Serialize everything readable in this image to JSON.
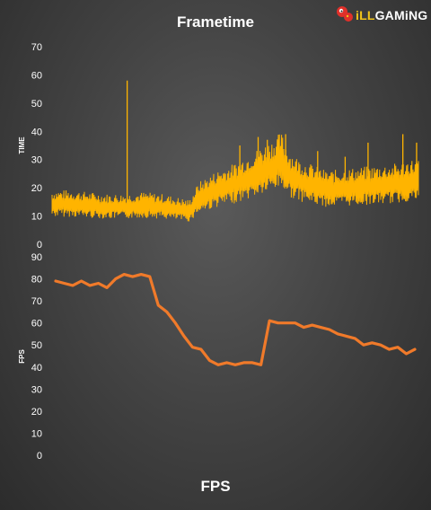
{
  "logo": {
    "brand": "iLLGAMiNG",
    "prefix": "iLL",
    "suffix": "GAMiNG",
    "accent": "#f0c419",
    "mascot_icon": "red-mascot-icon"
  },
  "chart_data": [
    {
      "type": "line",
      "title": "Frametime",
      "ylabel": "TIME",
      "xlabel": "",
      "ylim": [
        0,
        70
      ],
      "yticks": [
        0,
        10,
        20,
        30,
        40,
        50,
        60,
        70
      ],
      "grid": false,
      "color": "#ffb400",
      "x_range": [
        0,
        400
      ],
      "series": [
        {
          "values": [
            [
              0,
              14
            ],
            [
              20,
              14
            ],
            [
              40,
              13.5
            ],
            [
              60,
              13
            ],
            [
              80,
              13
            ],
            [
              100,
              13.5
            ],
            [
              120,
              13
            ],
            [
              140,
              12
            ],
            [
              150,
              11.5
            ],
            [
              160,
              16
            ],
            [
              180,
              19
            ],
            [
              200,
              21
            ],
            [
              220,
              24
            ],
            [
              240,
              27
            ],
            [
              250,
              29
            ],
            [
              260,
              24
            ],
            [
              270,
              22
            ],
            [
              280,
              21
            ],
            [
              290,
              20
            ],
            [
              300,
              19
            ],
            [
              320,
              19.5
            ],
            [
              340,
              20
            ],
            [
              360,
              20.5
            ],
            [
              380,
              21
            ],
            [
              390,
              22
            ],
            [
              400,
              22
            ]
          ]
        }
      ],
      "spikes": [
        [
          82,
          58
        ],
        [
          205,
          35
        ],
        [
          225,
          38
        ],
        [
          235,
          37
        ],
        [
          255,
          39
        ],
        [
          290,
          33
        ],
        [
          320,
          31
        ],
        [
          345,
          36
        ],
        [
          383,
          39
        ],
        [
          398,
          36
        ]
      ]
    },
    {
      "type": "line",
      "title": "FPS",
      "ylabel": "FPS",
      "xlabel": "",
      "ylim": [
        0,
        90
      ],
      "yticks": [
        0,
        10,
        20,
        30,
        40,
        50,
        60,
        70,
        80,
        90
      ],
      "grid": false,
      "color": "#f07a2a",
      "series": [
        {
          "values": [
            79,
            78,
            77,
            79,
            77,
            78,
            76,
            80,
            82,
            81,
            82,
            81,
            68,
            65,
            60,
            54,
            49,
            48,
            43,
            41,
            42,
            41,
            42,
            42,
            41,
            61,
            60,
            60,
            60,
            58,
            59,
            58,
            57,
            55,
            54,
            53,
            50,
            51,
            50,
            48,
            49,
            46,
            48
          ]
        }
      ]
    }
  ]
}
